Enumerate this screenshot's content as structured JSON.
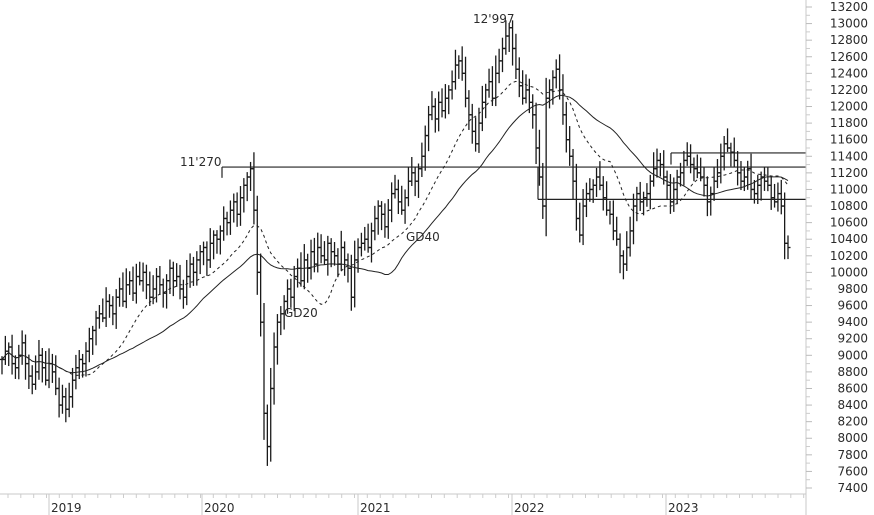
{
  "chart_data": {
    "type": "ohlc-bar",
    "title": "",
    "xlabel": "",
    "ylabel": "",
    "ylim": [
      7400,
      13200
    ],
    "y_ticks": [
      13200,
      13000,
      12800,
      12600,
      12400,
      12200,
      12000,
      11800,
      11600,
      11400,
      11200,
      11000,
      10800,
      10600,
      10400,
      10200,
      10000,
      9800,
      9600,
      9400,
      9200,
      9000,
      8800,
      8600,
      8400,
      8200,
      8000,
      7800,
      7600,
      7400
    ],
    "x_ticks": [
      "2019",
      "2020",
      "2021",
      "2022",
      "2023"
    ],
    "grid": false,
    "legend": "none",
    "annotations": [
      {
        "text": "11'270",
        "value": 11270,
        "date": "2020-02"
      },
      {
        "text": "12'997",
        "value": 12997,
        "date": "2021-12"
      },
      {
        "text": "GD20",
        "meaning": "20-period moving average (dashed)"
      },
      {
        "text": "GD40",
        "meaning": "40-period moving average (solid)"
      }
    ],
    "horizontal_levels": [
      {
        "value": 11270,
        "from": "2020-02",
        "to": "end"
      },
      {
        "value": 11440,
        "from": "2022-11",
        "to": "end"
      },
      {
        "value": 10880,
        "from": "2022-02",
        "to": "end"
      }
    ],
    "weekly_close_approx": {
      "x_start": "2018-09",
      "interval": "week",
      "values": [
        8950,
        9050,
        9100,
        8900,
        8850,
        9000,
        9150,
        8900,
        8750,
        8650,
        8800,
        9000,
        8850,
        8700,
        8900,
        8800,
        8600,
        8400,
        8500,
        8350,
        8500,
        8700,
        8850,
        8950,
        8900,
        9050,
        9200,
        9300,
        9450,
        9500,
        9450,
        9650,
        9600,
        9500,
        9700,
        9800,
        9650,
        9850,
        9900,
        9750,
        9950,
        9900,
        10000,
        9850,
        9700,
        9800,
        9950,
        9850,
        9750,
        9900,
        10050,
        9900,
        9950,
        9800,
        9700,
        9950,
        10100,
        10000,
        10150,
        10250,
        10300,
        10150,
        10350,
        10450,
        10400,
        10500,
        10650,
        10600,
        10750,
        10850,
        10700,
        10900,
        11050,
        11150,
        11250,
        10750,
        10000,
        9400,
        8300,
        7900,
        8600,
        9100,
        9400,
        9500,
        9650,
        9800,
        9700,
        9950,
        10050,
        9900,
        10150,
        10050,
        10250,
        10100,
        10300,
        10200,
        10150,
        10350,
        10250,
        10200,
        10100,
        10300,
        10150,
        10050,
        9700,
        10150,
        10300,
        10350,
        10400,
        10300,
        10500,
        10650,
        10800,
        10700,
        10550,
        10750,
        10950,
        11000,
        10850,
        10750,
        10900,
        11100,
        11200,
        11100,
        11250,
        11400,
        11650,
        11900,
        12000,
        11850,
        12050,
        11950,
        12100,
        12200,
        12300,
        12500,
        12550,
        12400,
        12100,
        11900,
        11700,
        11550,
        11800,
        12050,
        12200,
        12300,
        12100,
        12400,
        12550,
        12700,
        12850,
        12950,
        12700,
        12450,
        12250,
        12100,
        12200,
        12050,
        11900,
        11500,
        11150,
        10800,
        12100,
        12200,
        12350,
        12450,
        12200,
        11900,
        11600,
        11400,
        11100,
        10650,
        10450,
        10800,
        10950,
        11000,
        11050,
        11150,
        11050,
        10900,
        10750,
        10700,
        10500,
        10400,
        10200,
        10100,
        10300,
        10500,
        10800,
        10950,
        10850,
        10900,
        10950,
        11100,
        11250,
        11350,
        11300,
        11150,
        11050,
        10850,
        11000,
        11150,
        11200,
        11350,
        11400,
        11300,
        11250,
        11200,
        11150,
        11050,
        10850,
        10950,
        11100,
        11200,
        11400,
        11550,
        11500,
        11450,
        11350,
        11200,
        11100,
        11150,
        11250,
        11000,
        10950,
        11050,
        11150,
        11100,
        11050,
        10900,
        10850,
        10950,
        10800,
        10350,
        10300
      ]
    }
  },
  "axis": {
    "y_labels": [
      "13200",
      "13000",
      "12800",
      "12600",
      "12400",
      "12200",
      "12000",
      "11800",
      "11600",
      "11400",
      "11200",
      "11000",
      "10800",
      "10600",
      "10400",
      "10200",
      "10000",
      "9800",
      "9600",
      "9400",
      "9200",
      "9000",
      "8800",
      "8600",
      "8400",
      "8200",
      "8000",
      "7800",
      "7600",
      "7400"
    ],
    "x_labels": [
      "2019",
      "2020",
      "2021",
      "2022",
      "2023"
    ]
  },
  "labels": {
    "high_2020": "11'270",
    "high_2021": "12'997",
    "ma20": "GD20",
    "ma40": "GD40"
  }
}
